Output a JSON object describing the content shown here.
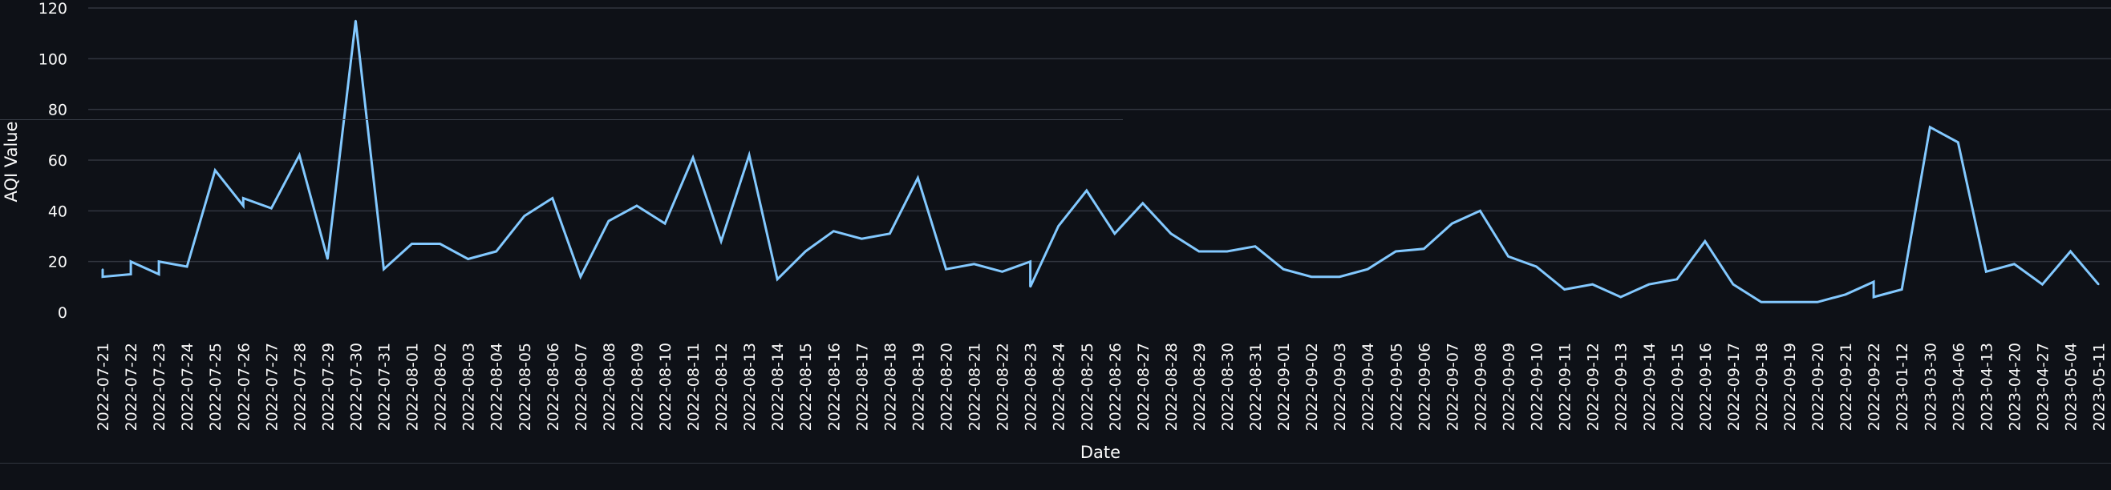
{
  "chart_data": {
    "type": "line",
    "xlabel": "Date",
    "ylabel": "AQI Value",
    "ylim": [
      -5,
      120
    ],
    "yticks": [
      0,
      20,
      40,
      60,
      80,
      100,
      120
    ],
    "grid": true,
    "colors": {
      "background": "#0e1117",
      "line": "#83c9ff",
      "grid": "#31353f",
      "text": "#fafafa"
    },
    "categories": [
      "2022-07-21",
      "2022-07-22",
      "2022-07-23",
      "2022-07-24",
      "2022-07-25",
      "2022-07-26",
      "2022-07-27",
      "2022-07-28",
      "2022-07-29",
      "2022-07-30",
      "2022-07-31",
      "2022-08-01",
      "2022-08-02",
      "2022-08-03",
      "2022-08-04",
      "2022-08-05",
      "2022-08-06",
      "2022-08-07",
      "2022-08-08",
      "2022-08-09",
      "2022-08-10",
      "2022-08-11",
      "2022-08-12",
      "2022-08-13",
      "2022-08-14",
      "2022-08-15",
      "2022-08-16",
      "2022-08-17",
      "2022-08-18",
      "2022-08-19",
      "2022-08-20",
      "2022-08-21",
      "2022-08-22",
      "2022-08-23",
      "2022-08-24",
      "2022-08-25",
      "2022-08-26",
      "2022-08-27",
      "2022-08-28",
      "2022-08-29",
      "2022-08-30",
      "2022-08-31",
      "2022-09-01",
      "2022-09-02",
      "2022-09-03",
      "2022-09-04",
      "2022-09-05",
      "2022-09-06",
      "2022-09-07",
      "2022-09-08",
      "2022-09-09",
      "2022-09-10",
      "2022-09-11",
      "2022-09-12",
      "2022-09-13",
      "2022-09-14",
      "2022-09-15",
      "2022-09-16",
      "2022-09-17",
      "2022-09-18",
      "2022-09-19",
      "2022-09-20",
      "2022-09-21",
      "2022-09-22",
      "2023-01-12",
      "2023-03-30",
      "2023-04-06",
      "2023-04-13",
      "2023-04-20",
      "2023-04-27",
      "2023-05-04",
      "2023-05-11"
    ],
    "points": [
      {
        "x": "2022-07-21",
        "y": 17
      },
      {
        "x": "2022-07-21",
        "y": 14
      },
      {
        "x": "2022-07-22",
        "y": 15
      },
      {
        "x": "2022-07-22",
        "y": 20
      },
      {
        "x": "2022-07-23",
        "y": 15
      },
      {
        "x": "2022-07-23",
        "y": 20
      },
      {
        "x": "2022-07-24",
        "y": 18
      },
      {
        "x": "2022-07-25",
        "y": 56
      },
      {
        "x": "2022-07-26",
        "y": 42
      },
      {
        "x": "2022-07-26",
        "y": 45
      },
      {
        "x": "2022-07-27",
        "y": 41
      },
      {
        "x": "2022-07-28",
        "y": 62
      },
      {
        "x": "2022-07-29",
        "y": 21
      },
      {
        "x": "2022-07-30",
        "y": 115
      },
      {
        "x": "2022-07-31",
        "y": 17
      },
      {
        "x": "2022-08-01",
        "y": 27
      },
      {
        "x": "2022-08-02",
        "y": 27
      },
      {
        "x": "2022-08-03",
        "y": 21
      },
      {
        "x": "2022-08-04",
        "y": 24
      },
      {
        "x": "2022-08-05",
        "y": 38
      },
      {
        "x": "2022-08-06",
        "y": 45
      },
      {
        "x": "2022-08-07",
        "y": 14
      },
      {
        "x": "2022-08-08",
        "y": 36
      },
      {
        "x": "2022-08-09",
        "y": 42
      },
      {
        "x": "2022-08-10",
        "y": 35
      },
      {
        "x": "2022-08-11",
        "y": 61
      },
      {
        "x": "2022-08-12",
        "y": 28
      },
      {
        "x": "2022-08-13",
        "y": 62
      },
      {
        "x": "2022-08-14",
        "y": 13
      },
      {
        "x": "2022-08-15",
        "y": 24
      },
      {
        "x": "2022-08-16",
        "y": 32
      },
      {
        "x": "2022-08-17",
        "y": 29
      },
      {
        "x": "2022-08-18",
        "y": 31
      },
      {
        "x": "2022-08-19",
        "y": 53
      },
      {
        "x": "2022-08-20",
        "y": 17
      },
      {
        "x": "2022-08-21",
        "y": 19
      },
      {
        "x": "2022-08-22",
        "y": 16
      },
      {
        "x": "2022-08-23",
        "y": 20
      },
      {
        "x": "2022-08-23",
        "y": 10
      },
      {
        "x": "2022-08-24",
        "y": 34
      },
      {
        "x": "2022-08-25",
        "y": 48
      },
      {
        "x": "2022-08-26",
        "y": 31
      },
      {
        "x": "2022-08-27",
        "y": 43
      },
      {
        "x": "2022-08-28",
        "y": 31
      },
      {
        "x": "2022-08-29",
        "y": 24
      },
      {
        "x": "2022-08-30",
        "y": 24
      },
      {
        "x": "2022-08-31",
        "y": 26
      },
      {
        "x": "2022-09-01",
        "y": 17
      },
      {
        "x": "2022-09-02",
        "y": 14
      },
      {
        "x": "2022-09-03",
        "y": 14
      },
      {
        "x": "2022-09-04",
        "y": 17
      },
      {
        "x": "2022-09-05",
        "y": 24
      },
      {
        "x": "2022-09-06",
        "y": 25
      },
      {
        "x": "2022-09-07",
        "y": 35
      },
      {
        "x": "2022-09-08",
        "y": 40
      },
      {
        "x": "2022-09-09",
        "y": 22
      },
      {
        "x": "2022-09-10",
        "y": 18
      },
      {
        "x": "2022-09-11",
        "y": 9
      },
      {
        "x": "2022-09-12",
        "y": 11
      },
      {
        "x": "2022-09-13",
        "y": 6
      },
      {
        "x": "2022-09-14",
        "y": 11
      },
      {
        "x": "2022-09-15",
        "y": 13
      },
      {
        "x": "2022-09-16",
        "y": 28
      },
      {
        "x": "2022-09-17",
        "y": 11
      },
      {
        "x": "2022-09-18",
        "y": 4
      },
      {
        "x": "2022-09-19",
        "y": 4
      },
      {
        "x": "2022-09-20",
        "y": 4
      },
      {
        "x": "2022-09-21",
        "y": 7
      },
      {
        "x": "2022-09-22",
        "y": 12
      },
      {
        "x": "2022-09-22",
        "y": 6
      },
      {
        "x": "2023-01-12",
        "y": 9
      },
      {
        "x": "2023-03-30",
        "y": 73
      },
      {
        "x": "2023-04-06",
        "y": 67
      },
      {
        "x": "2023-04-13",
        "y": 16
      },
      {
        "x": "2023-04-20",
        "y": 19
      },
      {
        "x": "2023-04-27",
        "y": 11
      },
      {
        "x": "2023-05-04",
        "y": 24
      },
      {
        "x": "2023-05-11",
        "y": 11
      }
    ]
  }
}
